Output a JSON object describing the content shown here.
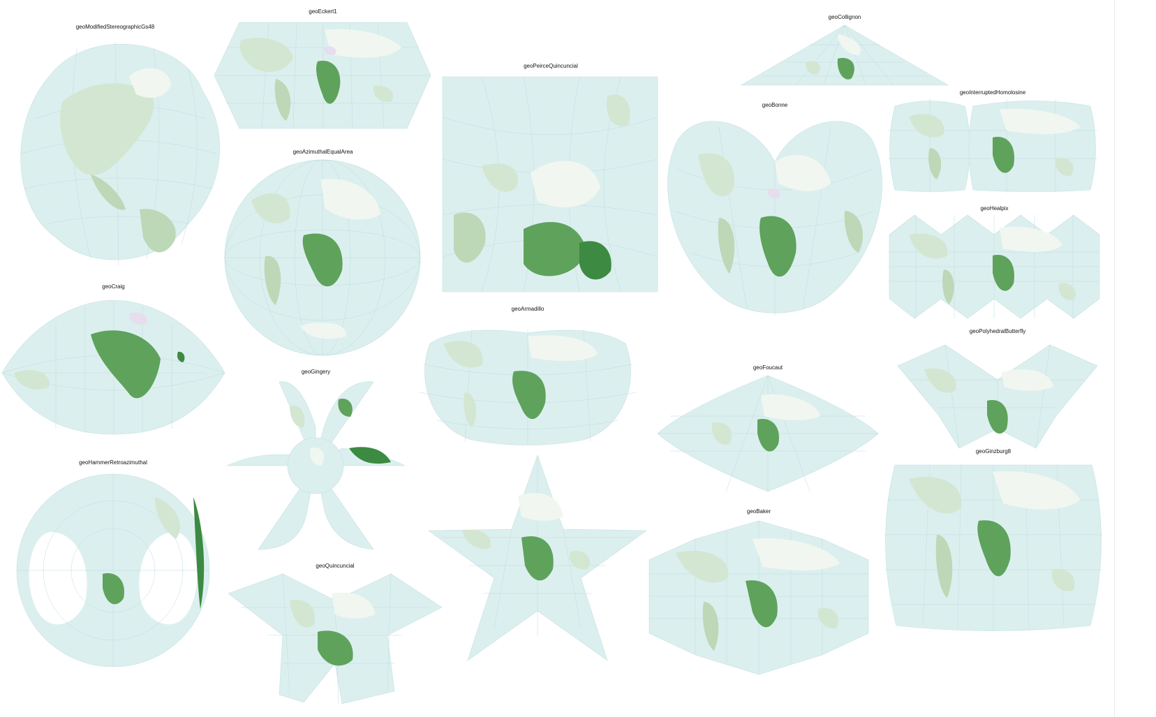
{
  "colors": {
    "ocean": "#dcefef",
    "graticule": "#bcdcdd",
    "land_light": "#d3e6d1",
    "land_mid": "#bcd8b7",
    "land_pale": "#f1f7f0",
    "land_green": "#8cbf87",
    "land_dark_green": "#3d8a42",
    "land_lavender": "#e6ddee"
  },
  "projections": [
    {
      "id": "p1",
      "title": "geoModifiedStereographicGs48",
      "shape": "blob"
    },
    {
      "id": "p2",
      "title": "geoEckert1",
      "shape": "hexagon"
    },
    {
      "id": "p3",
      "title": "geoPeirceQuincuncial",
      "shape": "square"
    },
    {
      "id": "p4",
      "title": "geoCollignon",
      "shape": "triangle"
    },
    {
      "id": "p5",
      "title": "geoInterruptedHomolosine",
      "shape": "lobes"
    },
    {
      "id": "p6",
      "title": "geoBonne",
      "shape": "heart"
    },
    {
      "id": "p7",
      "title": "geoAzimuthalEqualArea",
      "shape": "circle"
    },
    {
      "id": "p8",
      "title": "geoHealpix",
      "shape": "healpix"
    },
    {
      "id": "p9",
      "title": "geoCraig",
      "shape": "lens"
    },
    {
      "id": "p10",
      "title": "geoArmadillo",
      "shape": "armadillo"
    },
    {
      "id": "p11",
      "title": "geoPolyhedralButterfly",
      "shape": "butterfly"
    },
    {
      "id": "p12",
      "title": "geoGingery",
      "shape": "star6"
    },
    {
      "id": "p13",
      "title": "geoFoucaut",
      "shape": "diamond"
    },
    {
      "id": "p14",
      "title": "geoGinzburg8",
      "shape": "ginzburg"
    },
    {
      "id": "p15",
      "title": "geoHammerRetroazimuthal",
      "shape": "retro"
    },
    {
      "id": "p16",
      "title": "geoQuincuncial",
      "shape": "quincuncial"
    },
    {
      "id": "p17",
      "title": "",
      "shape": "star5"
    },
    {
      "id": "p18",
      "title": "geoBaker",
      "shape": "baker"
    }
  ]
}
